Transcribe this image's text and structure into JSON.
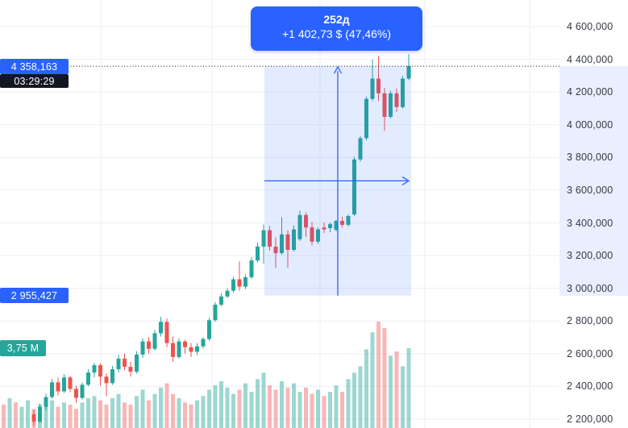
{
  "colors": {
    "accent": "#2962ff",
    "up": "#26a69a",
    "down": "#ef5350",
    "countdown_bg": "#131722",
    "volume_label_bg": "#26a69a",
    "grid": "#edeff4",
    "dotted_line": "#131722",
    "measure_fill": "rgba(41,98,255,0.13)",
    "scale_highlight": "rgba(41,98,255,0.10)"
  },
  "measure_tooltip": {
    "line1": "252д",
    "line2": "+1 402,73 $ (47,46%)"
  },
  "price_scale": {
    "ticks": [
      {
        "p": 4600,
        "t": "4 600,000"
      },
      {
        "p": 4400,
        "t": "4 400,000"
      },
      {
        "p": 4200,
        "t": "4 200,000"
      },
      {
        "p": 4000,
        "t": "4 000,000"
      },
      {
        "p": 3800,
        "t": "3 800,000"
      },
      {
        "p": 3600,
        "t": "3 600,000"
      },
      {
        "p": 3400,
        "t": "3 400,000"
      },
      {
        "p": 3200,
        "t": "3 200,000"
      },
      {
        "p": 3000,
        "t": "3 000,000"
      },
      {
        "p": 2800,
        "t": "2 800,000"
      },
      {
        "p": 2600,
        "t": "2 600,000"
      },
      {
        "p": 2400,
        "t": "2 400,000"
      },
      {
        "p": 2200,
        "t": "2 200,000"
      }
    ],
    "last_price": {
      "text": "4 358,163",
      "price": 4358.163
    },
    "countdown": {
      "text": "03:29:29"
    },
    "measure_from": {
      "text": "2 955,427",
      "price": 2955.427
    },
    "volume_label": {
      "text": "3,75 M",
      "value": 3.75
    }
  },
  "chart_data": {
    "type": "candlestick",
    "title": "",
    "xlabel": "",
    "ylabel": "",
    "price_axis": {
      "min": 2200,
      "max": 4600,
      "tick_step": 200,
      "grid": true
    },
    "last_price": 4358.163,
    "measure": {
      "bars_label": "252д",
      "from_price": 2955.427,
      "to_price": 4358.163,
      "change_abs": "+1 402,73 $",
      "change_pct": "47,46%",
      "latest_volume_m": 3.75
    },
    "lead_volumes": [
      [
        1.1,
        "d"
      ],
      [
        1.4,
        "u"
      ],
      [
        1.2,
        "d"
      ],
      [
        1.0,
        "u"
      ],
      [
        1.3,
        "u"
      ]
    ],
    "candles": [
      [
        2230,
        2255,
        2160,
        2185,
        "d",
        0.9
      ],
      [
        2185,
        2295,
        2175,
        2275,
        "u",
        1.1
      ],
      [
        2275,
        2355,
        2255,
        2335,
        "u",
        1.0
      ],
      [
        2335,
        2445,
        2325,
        2425,
        "u",
        1.3
      ],
      [
        2425,
        2455,
        2345,
        2370,
        "d",
        1.0
      ],
      [
        2370,
        2475,
        2360,
        2455,
        "u",
        1.2
      ],
      [
        2455,
        2465,
        2365,
        2385,
        "d",
        1.1
      ],
      [
        2385,
        2405,
        2300,
        2330,
        "d",
        0.9
      ],
      [
        2330,
        2425,
        2320,
        2410,
        "u",
        1.2
      ],
      [
        2410,
        2505,
        2400,
        2485,
        "u",
        1.4
      ],
      [
        2485,
        2545,
        2455,
        2530,
        "u",
        1.5
      ],
      [
        2530,
        2540,
        2405,
        2460,
        "d",
        1.3
      ],
      [
        2460,
        2480,
        2340,
        2420,
        "d",
        1.1
      ],
      [
        2420,
        2525,
        2410,
        2505,
        "u",
        1.4
      ],
      [
        2505,
        2595,
        2485,
        2570,
        "u",
        1.6
      ],
      [
        2570,
        2600,
        2500,
        2520,
        "d",
        1.2
      ],
      [
        2520,
        2550,
        2460,
        2490,
        "d",
        1.1
      ],
      [
        2490,
        2615,
        2480,
        2595,
        "u",
        1.5
      ],
      [
        2595,
        2695,
        2575,
        2675,
        "u",
        1.8
      ],
      [
        2675,
        2700,
        2600,
        2630,
        "d",
        1.3
      ],
      [
        2630,
        2745,
        2620,
        2725,
        "u",
        1.6
      ],
      [
        2725,
        2825,
        2705,
        2795,
        "u",
        1.9
      ],
      [
        2795,
        2815,
        2640,
        2665,
        "d",
        2.1
      ],
      [
        2665,
        2705,
        2550,
        2580,
        "d",
        1.6
      ],
      [
        2580,
        2695,
        2570,
        2675,
        "u",
        1.4
      ],
      [
        2675,
        2685,
        2600,
        2640,
        "d",
        1.2
      ],
      [
        2640,
        2665,
        2580,
        2612,
        "d",
        1.1
      ],
      [
        2612,
        2665,
        2592,
        2645,
        "u",
        1.3
      ],
      [
        2645,
        2700,
        2630,
        2690,
        "u",
        1.5
      ],
      [
        2690,
        2820,
        2680,
        2805,
        "u",
        1.8
      ],
      [
        2805,
        2915,
        2795,
        2900,
        "u",
        2.0
      ],
      [
        2900,
        2970,
        2890,
        2950,
        "u",
        2.2
      ],
      [
        2950,
        3000,
        2940,
        2985,
        "u",
        1.9
      ],
      [
        2985,
        3070,
        2975,
        3055,
        "u",
        1.6
      ],
      [
        3055,
        3165,
        2985,
        3010,
        "d",
        1.8
      ],
      [
        3010,
        3085,
        2995,
        3068,
        "u",
        2.1
      ],
      [
        3068,
        3190,
        3058,
        3170,
        "u",
        1.7
      ],
      [
        3170,
        3280,
        3160,
        3255,
        "u",
        2.3
      ],
      [
        3255,
        3390,
        3150,
        3355,
        "u",
        2.6
      ],
      [
        3355,
        3380,
        3230,
        3255,
        "d",
        2.0
      ],
      [
        3255,
        3310,
        3125,
        3215,
        "d",
        1.8
      ],
      [
        3215,
        3435,
        3205,
        3330,
        "u",
        2.2
      ],
      [
        3330,
        3355,
        3125,
        3235,
        "d",
        1.9
      ],
      [
        3235,
        3385,
        3225,
        3360,
        "u",
        2.1
      ],
      [
        3300,
        3475,
        3290,
        3448,
        "u",
        1.7
      ],
      [
        3448,
        3465,
        3315,
        3372,
        "d",
        1.9
      ],
      [
        3372,
        3405,
        3262,
        3285,
        "d",
        1.6
      ],
      [
        3285,
        3372,
        3272,
        3360,
        "u",
        1.8
      ],
      [
        3360,
        3402,
        3338,
        3372,
        "d",
        1.5
      ],
      [
        3368,
        3402,
        3342,
        3392,
        "u",
        1.7
      ],
      [
        3358,
        3418,
        3348,
        3412,
        "u",
        2.0
      ],
      [
        3412,
        3438,
        3372,
        3388,
        "d",
        1.7
      ],
      [
        3388,
        3452,
        3378,
        3442,
        "u",
        2.3
      ],
      [
        3452,
        3805,
        3442,
        3788,
        "u",
        2.6
      ],
      [
        3788,
        3932,
        3775,
        3918,
        "u",
        2.9
      ],
      [
        3918,
        4172,
        3905,
        4158,
        "u",
        3.7
      ],
      [
        4158,
        4398,
        4145,
        4282,
        "u",
        4.5
      ],
      [
        4282,
        4422,
        4145,
        4192,
        "d",
        5.0
      ],
      [
        4192,
        4225,
        3962,
        4048,
        "d",
        4.7
      ],
      [
        4048,
        4208,
        4038,
        4192,
        "u",
        3.4
      ],
      [
        4192,
        4222,
        4078,
        4108,
        "d",
        3.6
      ],
      [
        4108,
        4298,
        4098,
        4282,
        "u",
        2.9
      ],
      [
        4282,
        4432,
        4272,
        4358.163,
        "u",
        3.75
      ]
    ]
  }
}
